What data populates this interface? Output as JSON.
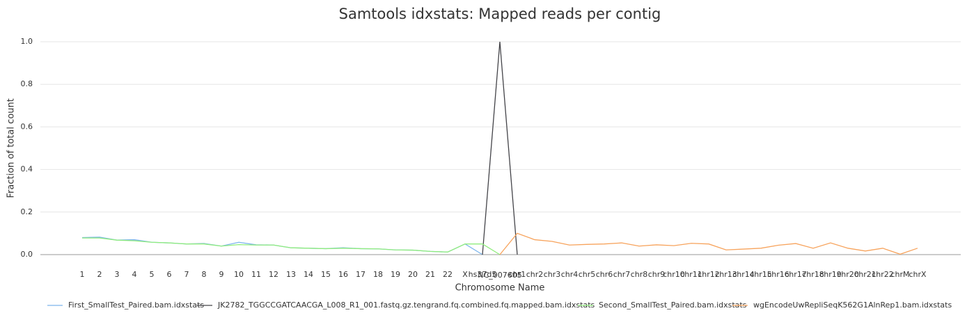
{
  "chart_data": {
    "type": "line",
    "title": "Samtools idxstats: Mapped reads per contig",
    "xlabel": "Chromosome Name",
    "ylabel": "Fraction of total count",
    "categories": [
      "1",
      "2",
      "3",
      "4",
      "5",
      "6",
      "7",
      "8",
      "9",
      "10",
      "11",
      "12",
      "13",
      "14",
      "15",
      "16",
      "17",
      "18",
      "19",
      "20",
      "21",
      "22",
      "X",
      "hs37d5",
      "NC_007605",
      "chr1",
      "chr2",
      "chr3",
      "chr4",
      "chr5",
      "chr6",
      "chr7",
      "chr8",
      "chr9",
      "chr10",
      "chr11",
      "chr12",
      "chr13",
      "chr14",
      "chr15",
      "chr16",
      "chr17",
      "chr18",
      "chr19",
      "chr20",
      "chr21",
      "chr22",
      "chrM",
      "chrX"
    ],
    "ylim": [
      0,
      1
    ],
    "yticks": [
      {
        "value": 0,
        "label": "0.0"
      },
      0.2,
      0.4,
      0.6,
      0.8,
      {
        "value": 1,
        "label": "1.0"
      }
    ],
    "grid": true,
    "legend": "bottom",
    "series": [
      {
        "name": "First_SmallTest_Paired.bam.idxstats",
        "color": "#7cb5ec",
        "values": [
          0.08,
          0.082,
          0.068,
          0.07,
          0.058,
          0.055,
          0.05,
          0.052,
          0.04,
          0.058,
          0.046,
          0.045,
          0.032,
          0.03,
          0.028,
          0.032,
          0.028,
          0.027,
          0.022,
          0.021,
          0.015,
          0.012,
          0.05,
          0.0,
          null,
          null,
          null,
          null,
          null,
          null,
          null,
          null,
          null,
          null,
          null,
          null,
          null,
          null,
          null,
          null,
          null,
          null,
          null,
          null,
          null,
          null,
          null,
          null,
          null
        ]
      },
      {
        "name": "JK2782_TGGCCGATCAACGA_L008_R1_001.fastq.gz.tengrand.fq.combined.fq.mapped.bam.idxstats",
        "color": "#434348",
        "values": [
          null,
          null,
          null,
          null,
          null,
          null,
          null,
          null,
          null,
          null,
          null,
          null,
          null,
          null,
          null,
          null,
          null,
          null,
          null,
          null,
          null,
          null,
          null,
          0.0,
          1.0,
          0.0,
          null,
          null,
          null,
          null,
          null,
          null,
          null,
          null,
          null,
          null,
          null,
          null,
          null,
          null,
          null,
          null,
          null,
          null,
          null,
          null,
          null,
          null,
          null
        ]
      },
      {
        "name": "Second_SmallTest_Paired.bam.idxstats",
        "color": "#90ed7d",
        "values": [
          0.078,
          0.078,
          0.068,
          0.065,
          0.058,
          0.055,
          0.05,
          0.05,
          0.04,
          0.047,
          0.045,
          0.045,
          0.032,
          0.03,
          0.028,
          0.03,
          0.028,
          0.027,
          0.022,
          0.021,
          0.015,
          0.012,
          0.05,
          0.05,
          0.0,
          null,
          null,
          null,
          null,
          null,
          null,
          null,
          null,
          null,
          null,
          null,
          null,
          null,
          null,
          null,
          null,
          null,
          null,
          null,
          null,
          null,
          null,
          null,
          null
        ]
      },
      {
        "name": "wgEncodeUwRepliSeqK562G1AlnRep1.bam.idxstats",
        "color": "#f7a35c",
        "values": [
          null,
          null,
          null,
          null,
          null,
          null,
          null,
          null,
          null,
          null,
          null,
          null,
          null,
          null,
          null,
          null,
          null,
          null,
          null,
          null,
          null,
          null,
          null,
          null,
          0.0,
          0.1,
          0.07,
          0.062,
          0.045,
          0.048,
          0.05,
          0.055,
          0.04,
          0.046,
          0.042,
          0.053,
          0.05,
          0.022,
          0.026,
          0.03,
          0.044,
          0.052,
          0.03,
          0.055,
          0.03,
          0.017,
          0.03,
          0.002,
          0.03
        ]
      }
    ]
  }
}
